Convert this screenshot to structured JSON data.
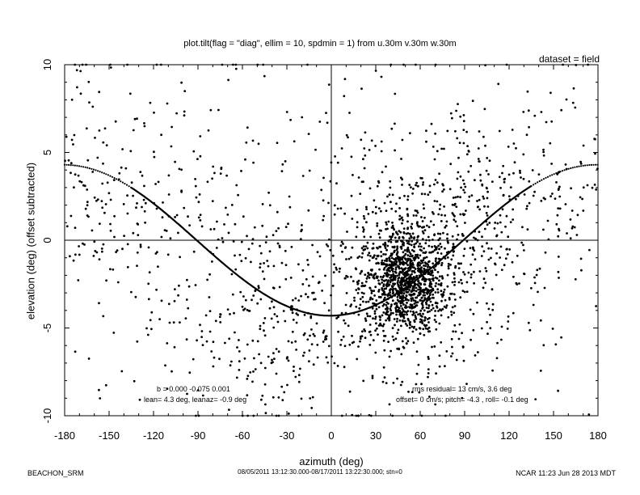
{
  "title": "plot.tilt(flag = \"diag\", ellim = 10, spdmin = 1) from u.30m v.30m w.30m",
  "dataset": "dataset = field",
  "annotations": {
    "left_line1": "b =  0.000 -0.075  0.001",
    "left_line2": "lean= 4.3 deg, leanaz= -0.9 deg",
    "right_line1": "rms residual= 13 cm/s, 3.6 deg",
    "right_line2": "offset=  0 cm/s; pitch= -4.3 , roll= -0.1 deg"
  },
  "footer": {
    "left": "BEACHON_SRM",
    "center": "08/05/2011 13:12:30.000-08/17/2011 13:22:30.000; stn=0",
    "right": "NCAR 11:23 Jun 28 2013 MDT"
  },
  "chart_data": {
    "type": "scatter",
    "xlabel": "azimuth (deg)",
    "ylabel": "elevation (deg)  (offset subtracted)",
    "xlim": [
      -180,
      180
    ],
    "ylim": [
      -10,
      10
    ],
    "xticks": [
      -180,
      -150,
      -120,
      -90,
      -60,
      -30,
      0,
      30,
      60,
      90,
      120,
      150,
      180
    ],
    "xtick_labels": [
      "-180",
      "-150",
      "-120",
      "-90",
      "-60",
      "-30",
      "0",
      "30",
      "60",
      "90",
      "120",
      "150",
      "180"
    ],
    "yticks": [
      -10,
      -5,
      0,
      5,
      10
    ],
    "ytick_labels": [
      "-10",
      "-5",
      "0",
      "5",
      "10"
    ],
    "fit_curve": {
      "description_values": "elevation = -4.3 * cos(azimuth + 0.9)",
      "amplitude": 4.3,
      "phase_deg": -0.9,
      "solid_range": [
        -135,
        135
      ]
    },
    "clusters": [
      {
        "x": 50,
        "y": -2.5,
        "sx": 14,
        "sy": 1.4,
        "n": 900
      },
      {
        "x": 55,
        "y": -1.5,
        "sx": 30,
        "sy": 3.0,
        "n": 500
      },
      {
        "x": -40,
        "y": -4.5,
        "sx": 35,
        "sy": 3.0,
        "n": 260
      },
      {
        "x": 100,
        "y": 1.5,
        "sx": 30,
        "sy": 3.5,
        "n": 200
      },
      {
        "x": -120,
        "y": 2.0,
        "sx": 35,
        "sy": 3.5,
        "n": 160
      },
      {
        "x": 0,
        "y": 0,
        "sx": 110,
        "sy": 6.0,
        "n": 340
      },
      {
        "x": 160,
        "y": 4.0,
        "sx": 20,
        "sy": 3.0,
        "n": 80
      },
      {
        "x": -165,
        "y": 4.0,
        "sx": 15,
        "sy": 3.5,
        "n": 70
      }
    ]
  }
}
